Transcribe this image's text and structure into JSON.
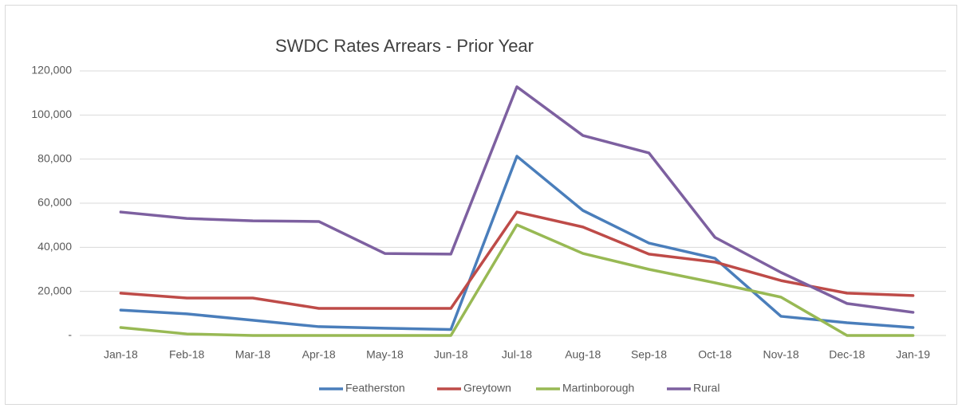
{
  "chart_data": {
    "type": "line",
    "title": "SWDC Rates Arrears - Prior Year",
    "categories": [
      "Jan-18",
      "Feb-18",
      "Mar-18",
      "Apr-18",
      "May-18",
      "Jun-18",
      "Jul-18",
      "Aug-18",
      "Sep-18",
      "Oct-18",
      "Nov-18",
      "Dec-18",
      "Jan-19"
    ],
    "series": [
      {
        "name": "Featherston",
        "color": "#4a7ebb",
        "values": [
          11500,
          9800,
          6900,
          4000,
          3300,
          2700,
          81300,
          56700,
          41900,
          35000,
          8700,
          5800,
          3600
        ]
      },
      {
        "name": "Greytown",
        "color": "#be4b48",
        "values": [
          19200,
          17000,
          17000,
          12300,
          12300,
          12300,
          56000,
          49200,
          36900,
          33300,
          24900,
          19200,
          18100
        ]
      },
      {
        "name": "Martinborough",
        "color": "#98b954",
        "values": [
          3600,
          700,
          0,
          0,
          0,
          0,
          50200,
          37200,
          30000,
          23900,
          17400,
          0,
          0
        ]
      },
      {
        "name": "Rural",
        "color": "#7d60a0",
        "values": [
          56000,
          53100,
          52000,
          51700,
          37200,
          36900,
          112800,
          90700,
          82800,
          44500,
          28600,
          14500,
          10500
        ]
      }
    ],
    "ylim": [
      0,
      120000
    ],
    "yticks": [
      {
        "value": 0,
        "label": "-"
      },
      {
        "value": 20000,
        "label": "20,000"
      },
      {
        "value": 40000,
        "label": "40,000"
      },
      {
        "value": 60000,
        "label": "60,000"
      },
      {
        "value": 80000,
        "label": "80,000"
      },
      {
        "value": 100000,
        "label": "100,000"
      },
      {
        "value": 120000,
        "label": "120,000"
      }
    ],
    "grid": true,
    "legend": "bottom"
  }
}
